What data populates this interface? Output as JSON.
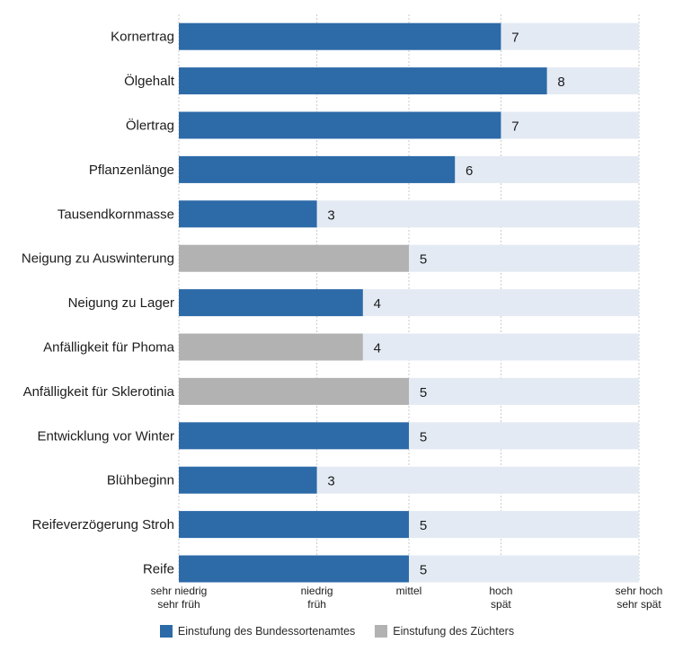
{
  "chart_data": {
    "type": "bar",
    "orientation": "horizontal",
    "categories": [
      "Kornertrag",
      "Ölgehalt",
      "Ölertrag",
      "Pflanzenlänge",
      "Tausendkornmasse",
      "Neigung zu Auswinterung",
      "Neigung zu Lager",
      "Anfälligkeit für Phoma",
      "Anfälligkeit für Sklerotinia",
      "Entwicklung vor Winter",
      "Blühbeginn",
      "Reifeverzögerung Stroh",
      "Reife"
    ],
    "values": [
      7,
      8,
      7,
      6,
      3,
      5,
      4,
      4,
      5,
      5,
      3,
      5,
      5
    ],
    "source": [
      "B",
      "B",
      "B",
      "B",
      "B",
      "Z",
      "B",
      "Z",
      "Z",
      "B",
      "B",
      "B",
      "B"
    ],
    "series": [
      {
        "key": "B",
        "name": "Einstufung des Bundessortenamtes",
        "color": "#2d6aa8"
      },
      {
        "key": "Z",
        "name": "Einstufung des Züchters",
        "color": "#b2b2b2"
      }
    ],
    "xlim": [
      0,
      10
    ],
    "x_ticks": [
      {
        "value": 0,
        "lines": [
          "sehr niedrig",
          "sehr früh"
        ]
      },
      {
        "value": 3,
        "lines": [
          "niedrig",
          "früh"
        ]
      },
      {
        "value": 5,
        "lines": [
          "mittel"
        ]
      },
      {
        "value": 7,
        "lines": [
          "hoch",
          "spät"
        ]
      },
      {
        "value": 10,
        "lines": [
          "sehr hoch",
          "sehr spät"
        ]
      }
    ],
    "grid": true,
    "background_bar_color": "#e3eaf3",
    "legend_position": "bottom"
  }
}
